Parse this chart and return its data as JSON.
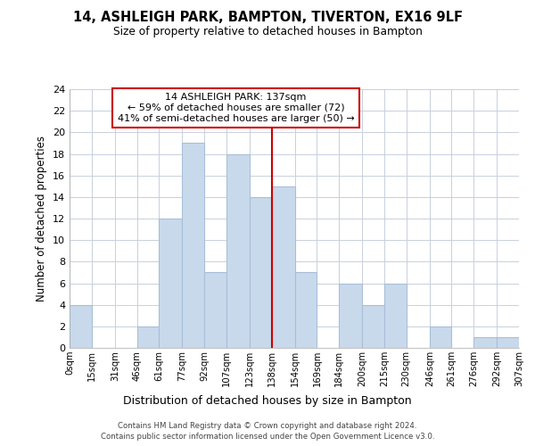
{
  "title": "14, ASHLEIGH PARK, BAMPTON, TIVERTON, EX16 9LF",
  "subtitle": "Size of property relative to detached houses in Bampton",
  "xlabel": "Distribution of detached houses by size in Bampton",
  "ylabel": "Number of detached properties",
  "footer_line1": "Contains HM Land Registry data © Crown copyright and database right 2024.",
  "footer_line2": "Contains public sector information licensed under the Open Government Licence v3.0.",
  "annotation_line1": "14 ASHLEIGH PARK: 137sqm",
  "annotation_line2": "← 59% of detached houses are smaller (72)",
  "annotation_line3": "41% of semi-detached houses are larger (50) →",
  "bar_color": "#c9d9ec",
  "bar_edgecolor": "#a8bfd8",
  "redline_x": 138,
  "bin_edges": [
    0,
    15,
    31,
    46,
    61,
    77,
    92,
    107,
    123,
    138,
    154,
    169,
    184,
    200,
    215,
    230,
    246,
    261,
    276,
    292,
    307
  ],
  "bin_labels": [
    "0sqm",
    "15sqm",
    "31sqm",
    "46sqm",
    "61sqm",
    "77sqm",
    "92sqm",
    "107sqm",
    "123sqm",
    "138sqm",
    "154sqm",
    "169sqm",
    "184sqm",
    "200sqm",
    "215sqm",
    "230sqm",
    "246sqm",
    "261sqm",
    "276sqm",
    "292sqm",
    "307sqm"
  ],
  "counts": [
    4,
    0,
    0,
    2,
    12,
    19,
    7,
    18,
    14,
    15,
    7,
    0,
    6,
    4,
    6,
    0,
    2,
    0,
    1,
    1
  ],
  "ylim": [
    0,
    24
  ],
  "yticks": [
    0,
    2,
    4,
    6,
    8,
    10,
    12,
    14,
    16,
    18,
    20,
    22,
    24
  ],
  "background_color": "#ffffff",
  "grid_color": "#c8d0dc",
  "annotation_box_edgecolor": "#cc0000",
  "redline_color": "#cc0000"
}
